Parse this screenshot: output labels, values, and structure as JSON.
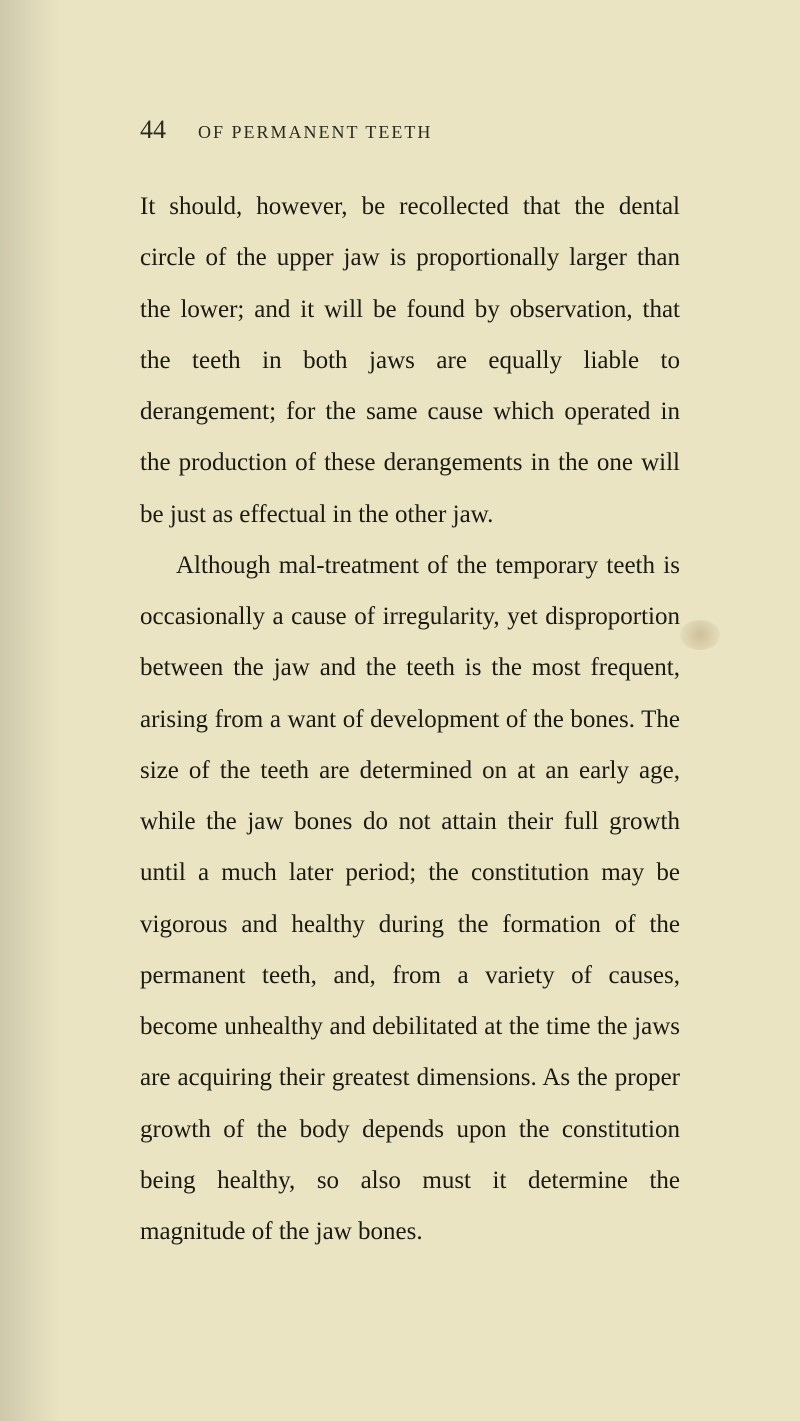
{
  "page": {
    "number": "44",
    "running_title": "OF PERMANENT TEETH",
    "paragraphs": [
      "It should, however, be recollected that the dental circle of the upper jaw is proportionally larger than the lower; and it will be found by observation, that the teeth in both jaws are equally liable to derangement; for the same cause which operated in the production of these derangements in the one will be just as effectual in the other jaw.",
      "Although mal-treatment of the temporary teeth is occasionally a cause of irregularity, yet disproportion between the jaw and the teeth is the most frequent, arising from a want of development of the bones. The size of the teeth are determined on at an early age, while the jaw bones do not attain their full growth until a much later period; the constitution may be vigorous and healthy during the formation of the permanent teeth, and, from a variety of causes, become unhealthy and debilitated at the time the jaws are acquiring their greatest dimensions. As the proper growth of the body depends upon the constitution being healthy, so also must it determine the magnitude of the jaw bones."
    ]
  },
  "styling": {
    "background_color": "#ebe4c3",
    "text_color": "#1a1a12",
    "header_color": "#2a2a1f",
    "body_font_size": 25,
    "body_line_height": 2.05,
    "page_number_font_size": 26,
    "running_title_font_size": 18,
    "running_title_letter_spacing": 2
  }
}
